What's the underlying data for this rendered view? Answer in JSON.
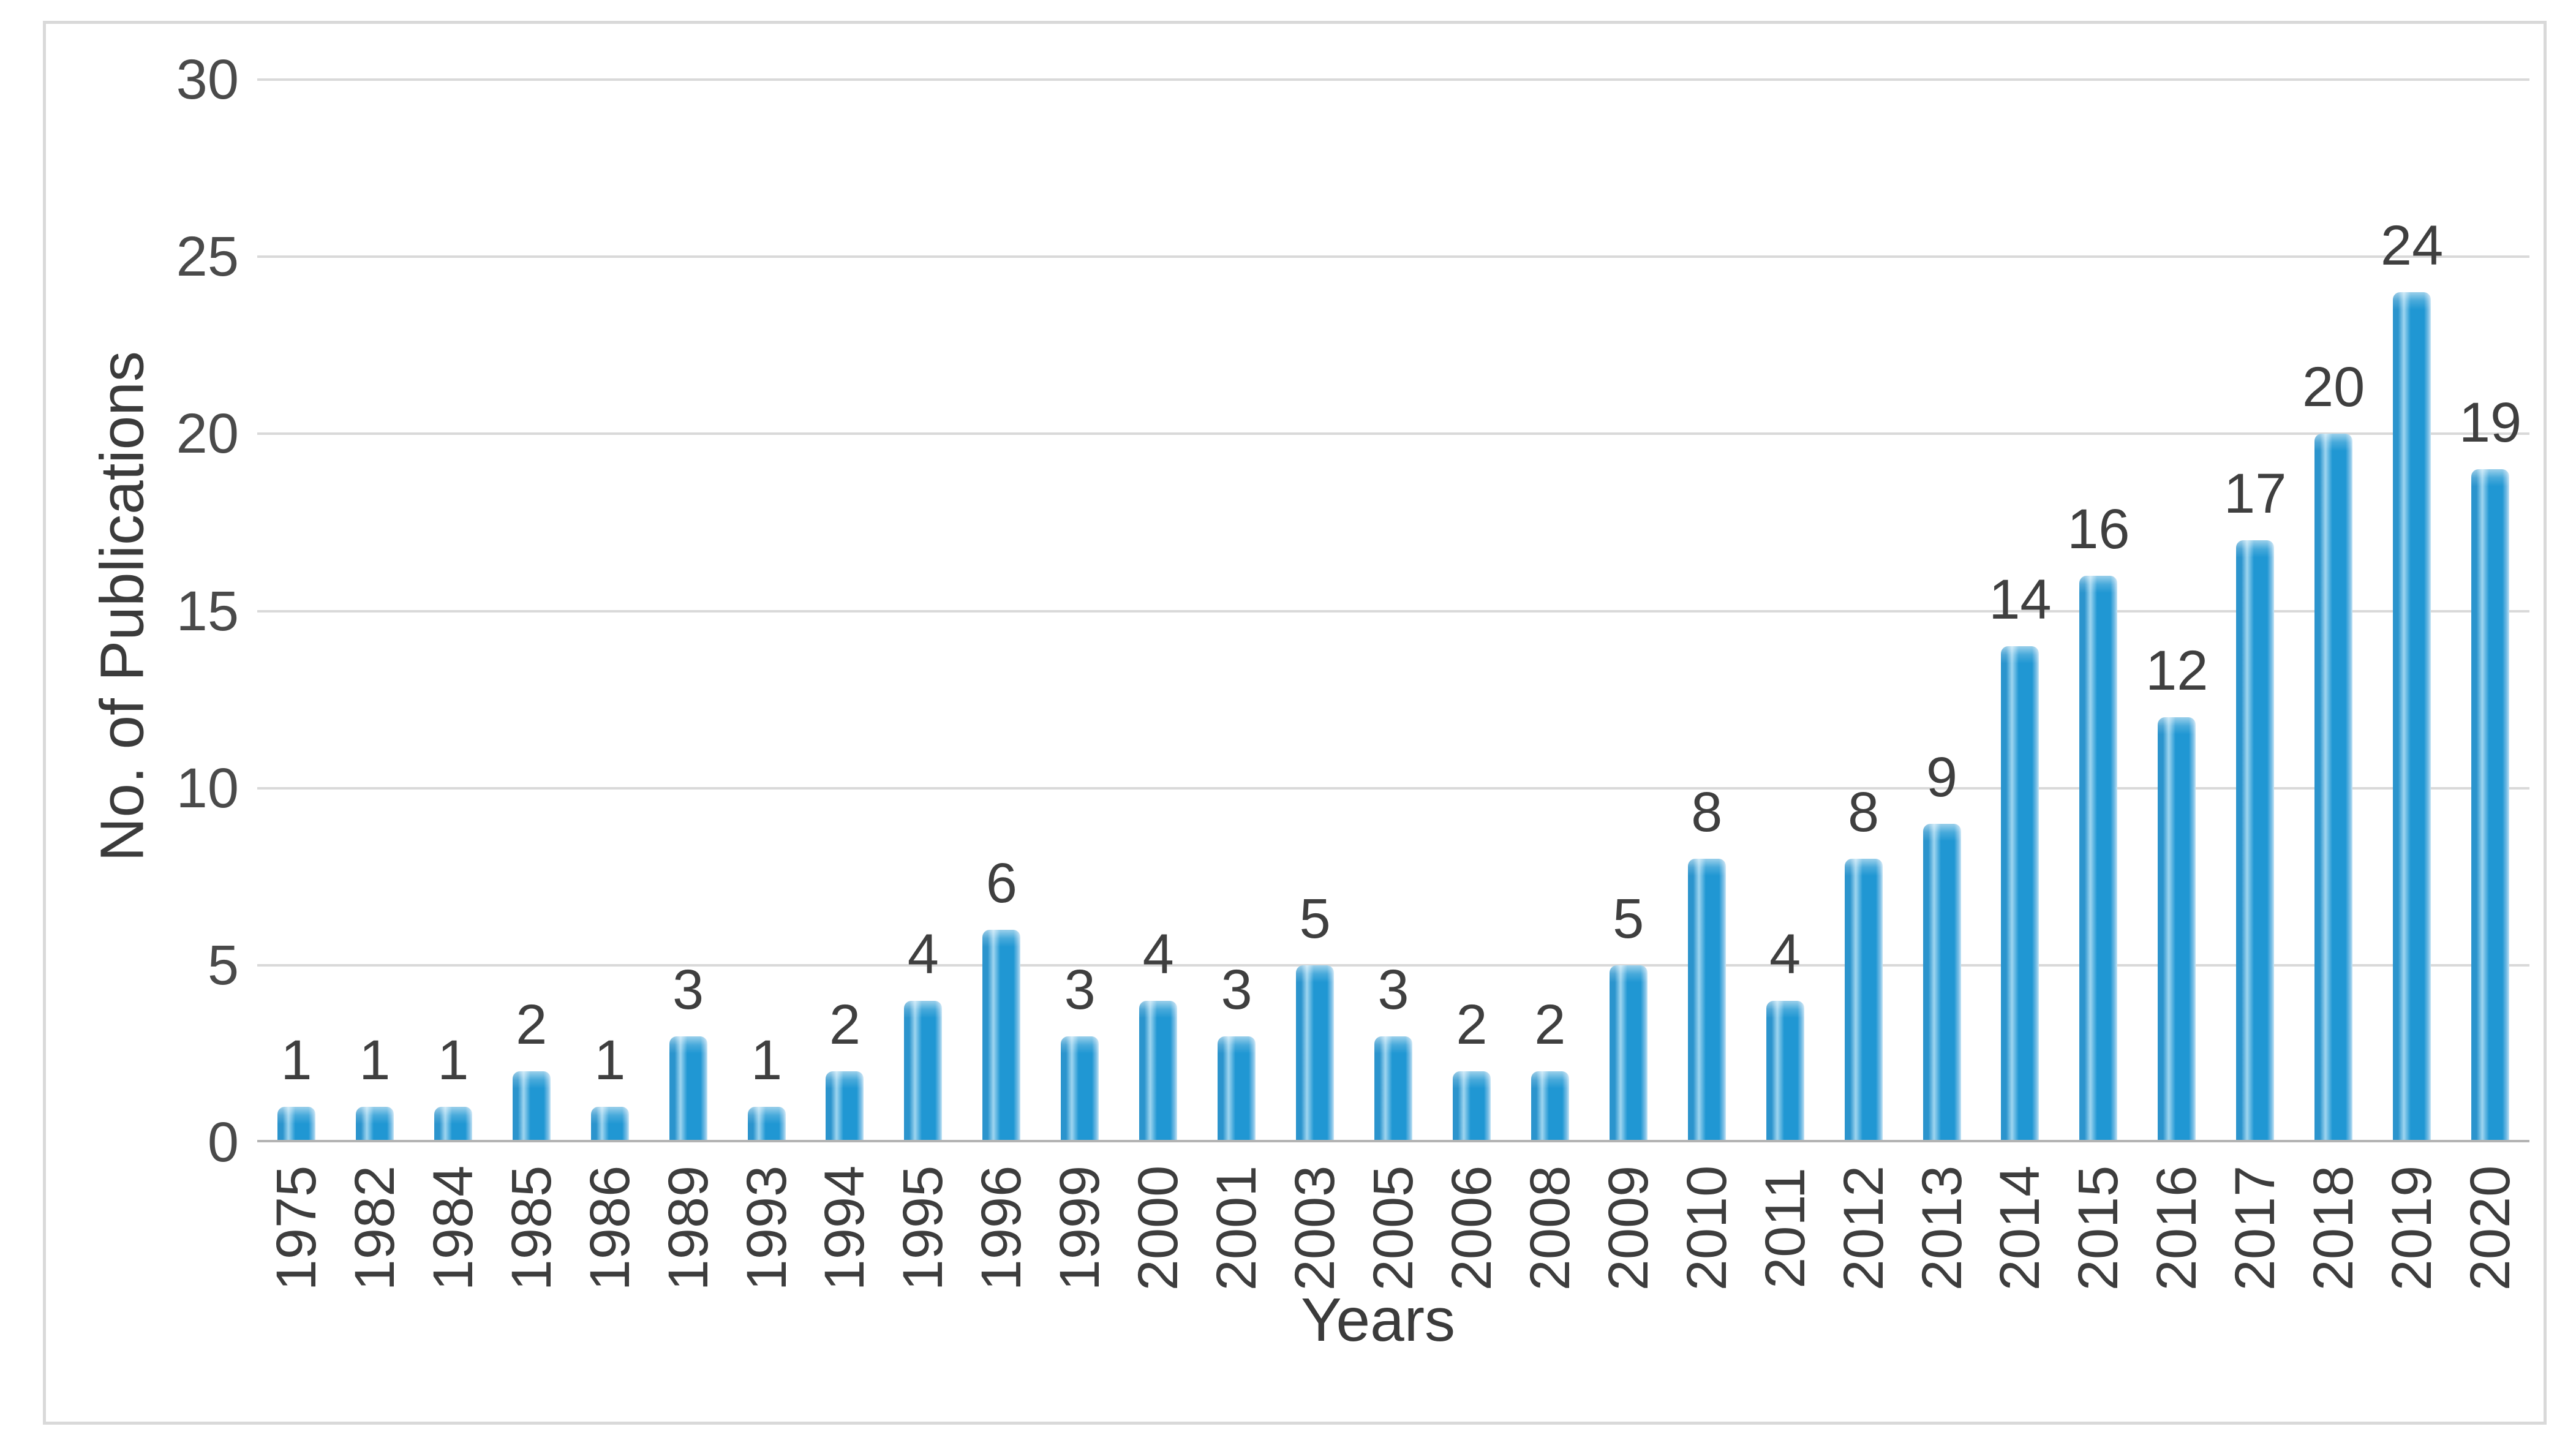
{
  "figure": {
    "background": "#ffffff",
    "border_color": "#d9d9d9"
  },
  "chart_data": {
    "type": "bar",
    "title": "",
    "xlabel": "Years",
    "ylabel": "No. of Publications",
    "categories": [
      "1975",
      "1982",
      "1984",
      "1985",
      "1986",
      "1989",
      "1993",
      "1994",
      "1995",
      "1996",
      "1999",
      "2000",
      "2001",
      "2003",
      "2005",
      "2006",
      "2008",
      "2009",
      "2010",
      "2011",
      "2012",
      "2013",
      "2014",
      "2015",
      "2016",
      "2017",
      "2018",
      "2019",
      "2020"
    ],
    "values": [
      1,
      1,
      1,
      2,
      1,
      3,
      1,
      2,
      4,
      6,
      3,
      4,
      3,
      5,
      3,
      2,
      2,
      5,
      8,
      4,
      8,
      9,
      14,
      16,
      12,
      17,
      20,
      24,
      19
    ],
    "data_labels": [
      1,
      1,
      1,
      2,
      1,
      3,
      1,
      2,
      4,
      6,
      3,
      4,
      3,
      5,
      3,
      2,
      2,
      5,
      8,
      4,
      8,
      9,
      14,
      16,
      12,
      17,
      20,
      24,
      19
    ],
    "ylim": [
      0,
      30
    ],
    "yticks": [
      0,
      5,
      10,
      15,
      20,
      25,
      30
    ],
    "grid": true,
    "legend": "none",
    "bar_color": "#2097d3",
    "bar_edge_color": "#2b94cd",
    "bar_highlight_color": "#9ed5f0",
    "gridline_color": "#d9d9d9",
    "axis_line_color": "#b3b3b3",
    "tick_label_color": "#4a4a4a",
    "data_label_color": "#3f3f3f",
    "axis_title_color": "#3b3b3b"
  }
}
